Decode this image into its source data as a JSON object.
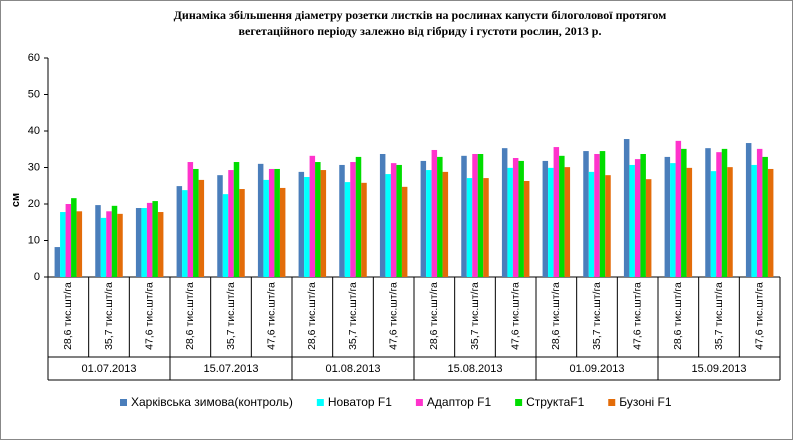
{
  "chart_data": {
    "type": "bar",
    "title": [
      "Динаміка збільшення  діаметру розетки листків на рослинах  капусти білоголової протягом",
      "вегетаційного періоду залежно від гібриду  і густоти рослин, 2013 р."
    ],
    "y_label": "см",
    "categories": [
      "28,6 тис.шт/га",
      "35,7 тис.шт/га",
      "47,6 тис.шт/га",
      "28,6 тис.шт/га",
      "35,7 тис.шт/га",
      "47,6 тис.шт/га",
      "28,6 тис.шт/га",
      "35,7 тис.шт/га",
      "47,6 тис.шт/га",
      "28,6 тис.шт/га",
      "35,7 тис.шт/га",
      "47,6 тис.шт/га",
      "28,6 тис.шт/га",
      "35,7 тис.шт/га",
      "47,6 тис.шт/га",
      "28,6 тис.шт/га",
      "35,7 тис.шт/га",
      "47,6 тис.шт/га"
    ],
    "category_groups": [
      "01.07.2013",
      "15.07.2013",
      "01.08.2013",
      "15.08.2013",
      "01.09.2013",
      "15.09.2013"
    ],
    "series": [
      {
        "name": "Харківська зимова(контроль)",
        "color": "#4a7ebb",
        "values": [
          8.2,
          19.7,
          18.9,
          24.9,
          27.9,
          31,
          28.8,
          30.7,
          33.7,
          31.8,
          33.2,
          35.3,
          31.8,
          34.5,
          37.8,
          32.9,
          35.3,
          36.7
        ]
      },
      {
        "name": "Новатор F1",
        "color": "#00ffff",
        "values": [
          17.8,
          16.2,
          18.9,
          23.8,
          22.7,
          26.6,
          27.4,
          26,
          28.2,
          29.3,
          27.1,
          29.9,
          29.9,
          28.8,
          30.7,
          31.2,
          29,
          30.7
        ]
      },
      {
        "name": "Адаптор F1",
        "color": "#ff33cc",
        "values": [
          20,
          18,
          20.3,
          31.5,
          29.3,
          29.6,
          33.2,
          31.5,
          31.2,
          34.8,
          33.7,
          32.6,
          35.6,
          33.7,
          32.3,
          37.3,
          34.2,
          35.1
        ]
      },
      {
        "name": "СтруктаF1",
        "color": "#00dd00",
        "values": [
          21.6,
          19.5,
          20.8,
          29.6,
          31.5,
          29.6,
          31.5,
          32.9,
          30.7,
          32.9,
          33.7,
          31.8,
          33.2,
          34.5,
          33.7,
          35.1,
          35.1,
          32.9
        ]
      },
      {
        "name": "Бузоні F1",
        "color": "#e36c09",
        "values": [
          18,
          17.3,
          17.8,
          26.6,
          24.1,
          24.4,
          29.3,
          25.8,
          24.7,
          28.8,
          27.1,
          26.3,
          30.1,
          27.9,
          26.8,
          29.9,
          30.1,
          29.6
        ]
      }
    ],
    "ylim": [
      0,
      60
    ],
    "yticks": [
      0,
      10,
      20,
      30,
      40,
      50,
      60
    ],
    "grid": false
  }
}
